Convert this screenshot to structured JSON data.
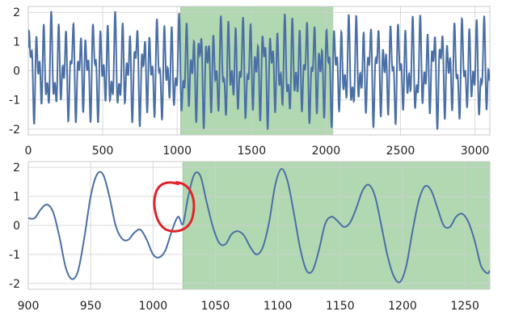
{
  "chart_data": [
    {
      "type": "line",
      "title": "",
      "xlabel": "",
      "ylabel": "",
      "xlim": [
        0,
        3100
      ],
      "ylim": [
        -2.2,
        2.2
      ],
      "x_ticks": [
        0,
        500,
        1000,
        1500,
        2000,
        2500,
        3000
      ],
      "y_ticks": [
        2,
        1,
        0,
        -1,
        -2
      ],
      "grid": true,
      "highlight": {
        "x_start": 1024,
        "x_end": 2048,
        "color": "#b2d8b2"
      },
      "series": [
        {
          "color": "#4a6fa5",
          "signal": {
            "x_start": 0,
            "x_end": 3100,
            "step": 2,
            "components": [
              {
                "amplitude": 1.0,
                "period": 47.6
              },
              {
                "amplitude": 0.75,
                "period": 25.3,
                "phase": 1.1
              },
              {
                "amplitude": 0.3,
                "period": 71.0,
                "phase": 0.4
              }
            ]
          }
        }
      ]
    },
    {
      "type": "line",
      "title": "",
      "xlabel": "",
      "ylabel": "",
      "xlim": [
        900,
        1270
      ],
      "ylim": [
        -2.2,
        2.2
      ],
      "x_ticks": [
        900,
        950,
        1000,
        1050,
        1100,
        1150,
        1200,
        1250
      ],
      "y_ticks": [
        2,
        1,
        0,
        -1,
        -2
      ],
      "grid": true,
      "highlight": {
        "x_start": 1024,
        "x_end": 1270,
        "color": "#b2d8b2"
      },
      "series": [
        {
          "color": "#4a6fa5",
          "points": [
            [
              900,
              0.25
            ],
            [
              905,
              0.25
            ],
            [
              910,
              0.55
            ],
            [
              915,
              0.72
            ],
            [
              920,
              0.45
            ],
            [
              925,
              -0.4
            ],
            [
              930,
              -1.45
            ],
            [
              935,
              -1.85
            ],
            [
              940,
              -1.55
            ],
            [
              945,
              -0.4
            ],
            [
              950,
              1.0
            ],
            [
              955,
              1.75
            ],
            [
              960,
              1.75
            ],
            [
              965,
              1.0
            ],
            [
              970,
              0.0
            ],
            [
              975,
              -0.45
            ],
            [
              980,
              -0.5
            ],
            [
              985,
              -0.25
            ],
            [
              990,
              -0.15
            ],
            [
              995,
              -0.5
            ],
            [
              1000,
              -1.0
            ],
            [
              1005,
              -1.1
            ],
            [
              1010,
              -0.85
            ],
            [
              1015,
              -0.2
            ],
            [
              1020,
              0.3
            ],
            [
              1024,
              0.05
            ],
            [
              1028,
              0.95
            ],
            [
              1033,
              1.75
            ],
            [
              1038,
              1.7
            ],
            [
              1043,
              0.8
            ],
            [
              1048,
              -0.05
            ],
            [
              1053,
              -0.6
            ],
            [
              1058,
              -0.65
            ],
            [
              1063,
              -0.3
            ],
            [
              1068,
              -0.2
            ],
            [
              1073,
              -0.35
            ],
            [
              1078,
              -0.75
            ],
            [
              1083,
              -1.0
            ],
            [
              1088,
              -0.75
            ],
            [
              1093,
              0.1
            ],
            [
              1098,
              1.4
            ],
            [
              1103,
              1.95
            ],
            [
              1108,
              1.5
            ],
            [
              1113,
              0.4
            ],
            [
              1118,
              -0.8
            ],
            [
              1123,
              -1.55
            ],
            [
              1128,
              -1.55
            ],
            [
              1133,
              -0.85
            ],
            [
              1138,
              0.05
            ],
            [
              1143,
              0.3
            ],
            [
              1148,
              0.15
            ],
            [
              1153,
              -0.05
            ],
            [
              1158,
              0.1
            ],
            [
              1163,
              0.6
            ],
            [
              1168,
              1.2
            ],
            [
              1173,
              1.4
            ],
            [
              1178,
              1.0
            ],
            [
              1183,
              0.0
            ],
            [
              1188,
              -1.05
            ],
            [
              1193,
              -1.75
            ],
            [
              1198,
              -1.95
            ],
            [
              1203,
              -1.4
            ],
            [
              1208,
              -0.2
            ],
            [
              1213,
              0.85
            ],
            [
              1218,
              1.35
            ],
            [
              1223,
              1.2
            ],
            [
              1228,
              0.6
            ],
            [
              1233,
              0.0
            ],
            [
              1238,
              -0.05
            ],
            [
              1243,
              0.3
            ],
            [
              1248,
              0.4
            ],
            [
              1253,
              0.1
            ],
            [
              1258,
              -0.55
            ],
            [
              1263,
              -1.4
            ],
            [
              1268,
              -1.65
            ],
            [
              1270,
              -1.55
            ]
          ]
        }
      ],
      "annotation": {
        "shape": "hand-drawn circle",
        "color": "#e0242b",
        "x": 1015,
        "y": 0.65
      }
    }
  ]
}
